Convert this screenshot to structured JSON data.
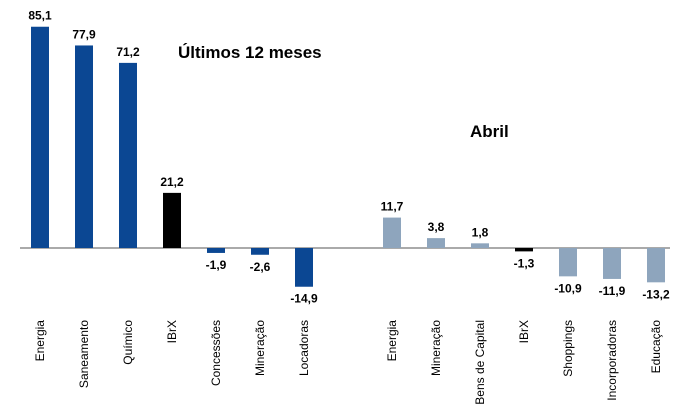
{
  "chart_data": [
    {
      "type": "bar",
      "title": "Últimos 12 meses",
      "categories": [
        "Energia",
        "Saneamento",
        "Químico",
        "IBrX",
        "Concessões",
        "Mineração",
        "Locadoras"
      ],
      "values": [
        85.1,
        77.9,
        71.2,
        21.2,
        -1.9,
        -2.6,
        -14.9
      ],
      "value_labels": [
        "85,1",
        "77,9",
        "71,2",
        "21,2",
        "-1,9",
        "-2,6",
        "-14,9"
      ],
      "colors": [
        "#0b4793",
        "#0b4793",
        "#0b4793",
        "#000000",
        "#0b4793",
        "#0b4793",
        "#0b4793"
      ]
    },
    {
      "type": "bar",
      "title": "Abril",
      "categories": [
        "Energia",
        "Mineração",
        "Bens de Capital",
        "IBrX",
        "Shoppings",
        "Incorporadoras",
        "Educação"
      ],
      "values": [
        11.7,
        3.8,
        1.8,
        -1.3,
        -10.9,
        -11.9,
        -13.2
      ],
      "value_labels": [
        "11,7",
        "3,8",
        "1,8",
        "-1,3",
        "-10,9",
        "-11,9",
        "-13,2"
      ],
      "colors": [
        "#8ea5bd",
        "#8ea5bd",
        "#8ea5bd",
        "#000000",
        "#8ea5bd",
        "#8ea5bd",
        "#8ea5bd"
      ]
    }
  ]
}
